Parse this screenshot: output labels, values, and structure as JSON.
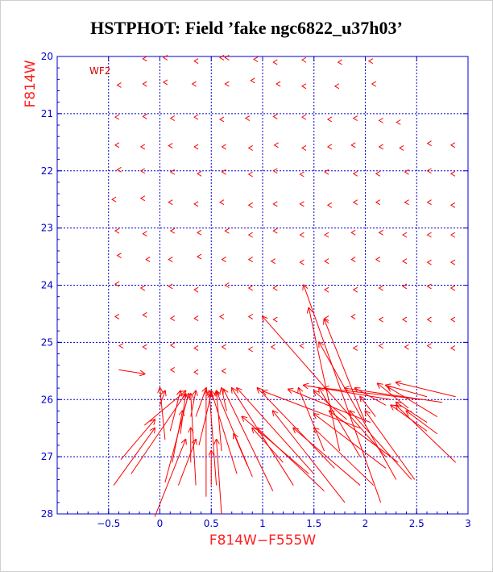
{
  "chart_data": {
    "type": "vector-field",
    "title": "HSTPHOT: Field ’fake ngc6822_u37h03’",
    "xlabel": "F814W−F555W",
    "ylabel": "F814W",
    "annotation": "WF2",
    "xlim": [
      -1.0,
      3.0
    ],
    "ylim": [
      28,
      20
    ],
    "y_inverted": true,
    "grid": true,
    "x_ticks": [
      -0.5,
      0,
      0.5,
      1,
      1.5,
      2,
      2.5,
      3
    ],
    "x_tick_labels": [
      "−0.5",
      "0",
      "0.5",
      "1",
      "1.5",
      "2",
      "2.5",
      "3"
    ],
    "y_ticks": [
      20,
      21,
      22,
      23,
      24,
      25,
      26,
      27,
      28
    ],
    "y_tick_labels": [
      "20",
      "21",
      "22",
      "23",
      "24",
      "25",
      "26",
      "27",
      "28"
    ],
    "grid_x": [
      -0.5,
      0,
      0.5,
      1,
      1.5,
      2,
      2.5
    ],
    "grid_y": [
      21,
      22,
      23,
      24,
      25,
      26,
      27
    ],
    "colors": {
      "axes": "#0000cc",
      "grid": "#0000cc",
      "vectors": "#ff0000",
      "title": "#000000",
      "axis_title": "#ff2020"
    },
    "arrows_note": "each arrow: [x_tail, y_tail, x_head, y_head] in data units (color, magnitude)",
    "arrows": [
      [
        -0.15,
        20.04,
        -0.15,
        20.04
      ],
      [
        0.05,
        20.02,
        0.05,
        20.02
      ],
      [
        0.35,
        20.08,
        0.35,
        20.08
      ],
      [
        0.6,
        20.02,
        0.6,
        20.02
      ],
      [
        0.65,
        20.02,
        0.65,
        20.02
      ],
      [
        0.93,
        20.05,
        0.93,
        20.05
      ],
      [
        1.12,
        20.1,
        1.12,
        20.1
      ],
      [
        1.4,
        20.06,
        1.4,
        20.06
      ],
      [
        1.75,
        20.1,
        1.75,
        20.1
      ],
      [
        2.05,
        20.08,
        2.05,
        20.08
      ],
      [
        -0.4,
        20.5,
        -0.4,
        20.5
      ],
      [
        -0.15,
        20.48,
        -0.15,
        20.48
      ],
      [
        0.05,
        20.45,
        0.05,
        20.45
      ],
      [
        0.33,
        20.48,
        0.33,
        20.48
      ],
      [
        0.65,
        20.48,
        0.65,
        20.48
      ],
      [
        0.9,
        20.42,
        0.9,
        20.42
      ],
      [
        1.15,
        20.48,
        1.15,
        20.48
      ],
      [
        1.4,
        20.52,
        1.4,
        20.52
      ],
      [
        1.72,
        20.52,
        1.72,
        20.52
      ],
      [
        2.08,
        20.48,
        2.08,
        20.48
      ],
      [
        -0.42,
        21.06,
        -0.42,
        21.06
      ],
      [
        -0.15,
        21.05,
        -0.15,
        21.05
      ],
      [
        0.12,
        21.08,
        0.12,
        21.08
      ],
      [
        0.35,
        21.06,
        0.35,
        21.06
      ],
      [
        0.6,
        21.1,
        0.6,
        21.1
      ],
      [
        0.85,
        21.08,
        0.85,
        21.08
      ],
      [
        1.12,
        21.05,
        1.12,
        21.05
      ],
      [
        1.4,
        21.06,
        1.4,
        21.06
      ],
      [
        1.65,
        21.1,
        1.65,
        21.1
      ],
      [
        1.9,
        21.08,
        1.9,
        21.08
      ],
      [
        2.15,
        21.12,
        2.15,
        21.12
      ],
      [
        2.32,
        21.15,
        2.32,
        21.15
      ],
      [
        -0.42,
        21.55,
        -0.42,
        21.55
      ],
      [
        -0.17,
        21.58,
        -0.17,
        21.58
      ],
      [
        0.1,
        21.56,
        0.1,
        21.56
      ],
      [
        0.35,
        21.58,
        0.35,
        21.58
      ],
      [
        0.62,
        21.58,
        0.62,
        21.58
      ],
      [
        0.88,
        21.6,
        0.88,
        21.6
      ],
      [
        1.13,
        21.55,
        1.13,
        21.55
      ],
      [
        1.4,
        21.6,
        1.4,
        21.6
      ],
      [
        1.65,
        21.58,
        1.65,
        21.58
      ],
      [
        1.88,
        21.55,
        1.88,
        21.55
      ],
      [
        2.15,
        21.58,
        2.15,
        21.58
      ],
      [
        2.35,
        21.6,
        2.35,
        21.6
      ],
      [
        2.62,
        21.52,
        2.62,
        21.52
      ],
      [
        2.85,
        21.55,
        2.85,
        21.55
      ],
      [
        -0.4,
        21.98,
        -0.4,
        21.98
      ],
      [
        -0.17,
        22.0,
        -0.17,
        22.0
      ],
      [
        0.12,
        22.02,
        0.12,
        22.02
      ],
      [
        0.38,
        22.05,
        0.38,
        22.05
      ],
      [
        0.62,
        22.02,
        0.62,
        22.02
      ],
      [
        0.88,
        22.06,
        0.88,
        22.06
      ],
      [
        1.12,
        22.0,
        1.12,
        22.0
      ],
      [
        1.38,
        22.06,
        1.38,
        22.06
      ],
      [
        1.62,
        22.02,
        1.62,
        22.02
      ],
      [
        1.9,
        22.05,
        1.9,
        22.05
      ],
      [
        2.12,
        22.05,
        2.12,
        22.05
      ],
      [
        2.4,
        22.02,
        2.4,
        22.02
      ],
      [
        2.62,
        22.0,
        2.62,
        22.0
      ],
      [
        2.85,
        22.05,
        2.85,
        22.05
      ],
      [
        -0.45,
        22.5,
        -0.45,
        22.5
      ],
      [
        -0.17,
        22.48,
        -0.17,
        22.48
      ],
      [
        0.1,
        22.55,
        0.1,
        22.55
      ],
      [
        0.35,
        22.58,
        0.35,
        22.58
      ],
      [
        0.6,
        22.55,
        0.6,
        22.55
      ],
      [
        0.88,
        22.6,
        0.88,
        22.6
      ],
      [
        1.12,
        22.58,
        1.12,
        22.58
      ],
      [
        1.38,
        22.58,
        1.38,
        22.58
      ],
      [
        1.65,
        22.6,
        1.65,
        22.6
      ],
      [
        1.9,
        22.55,
        1.9,
        22.55
      ],
      [
        2.12,
        22.55,
        2.12,
        22.55
      ],
      [
        2.4,
        22.55,
        2.4,
        22.55
      ],
      [
        2.62,
        22.55,
        2.62,
        22.55
      ],
      [
        2.85,
        22.6,
        2.85,
        22.6
      ],
      [
        -0.42,
        23.05,
        -0.42,
        23.05
      ],
      [
        -0.15,
        23.1,
        -0.15,
        23.1
      ],
      [
        0.12,
        23.05,
        0.12,
        23.05
      ],
      [
        0.38,
        23.08,
        0.38,
        23.08
      ],
      [
        0.65,
        23.05,
        0.65,
        23.05
      ],
      [
        0.88,
        23.12,
        0.88,
        23.12
      ],
      [
        1.12,
        23.05,
        1.12,
        23.05
      ],
      [
        1.38,
        23.12,
        1.38,
        23.12
      ],
      [
        1.62,
        23.12,
        1.62,
        23.12
      ],
      [
        1.88,
        23.08,
        1.88,
        23.08
      ],
      [
        2.15,
        23.08,
        2.15,
        23.08
      ],
      [
        2.38,
        23.12,
        2.38,
        23.12
      ],
      [
        2.62,
        23.12,
        2.62,
        23.12
      ],
      [
        2.85,
        23.12,
        2.85,
        23.12
      ],
      [
        -0.4,
        23.48,
        -0.4,
        23.48
      ],
      [
        -0.12,
        23.55,
        -0.12,
        23.55
      ],
      [
        0.1,
        23.55,
        0.1,
        23.55
      ],
      [
        0.38,
        23.5,
        0.38,
        23.5
      ],
      [
        0.62,
        23.55,
        0.62,
        23.55
      ],
      [
        0.88,
        23.55,
        0.88,
        23.55
      ],
      [
        1.1,
        23.58,
        1.1,
        23.58
      ],
      [
        1.38,
        23.6,
        1.38,
        23.6
      ],
      [
        1.62,
        23.58,
        1.62,
        23.58
      ],
      [
        1.88,
        23.55,
        1.88,
        23.55
      ],
      [
        2.12,
        23.55,
        2.12,
        23.55
      ],
      [
        2.38,
        23.58,
        2.38,
        23.58
      ],
      [
        2.62,
        23.6,
        2.62,
        23.6
      ],
      [
        2.85,
        23.6,
        2.85,
        23.6
      ],
      [
        -0.42,
        23.98,
        -0.42,
        23.98
      ],
      [
        -0.17,
        24.05,
        -0.17,
        24.05
      ],
      [
        0.1,
        24.02,
        0.1,
        24.02
      ],
      [
        0.35,
        24.08,
        0.35,
        24.08
      ],
      [
        0.65,
        24.0,
        0.65,
        24.0
      ],
      [
        0.88,
        24.05,
        0.88,
        24.05
      ],
      [
        1.12,
        24.05,
        1.12,
        24.05
      ],
      [
        1.62,
        24.08,
        1.62,
        24.08
      ],
      [
        1.9,
        24.08,
        1.9,
        24.08
      ],
      [
        2.15,
        24.05,
        2.15,
        24.05
      ],
      [
        2.38,
        24.02,
        2.38,
        24.02
      ],
      [
        2.62,
        24.02,
        2.62,
        24.02
      ],
      [
        2.85,
        24.05,
        2.85,
        24.05
      ],
      [
        -0.42,
        24.55,
        -0.42,
        24.55
      ],
      [
        -0.15,
        24.52,
        -0.15,
        24.52
      ],
      [
        0.12,
        24.58,
        0.12,
        24.58
      ],
      [
        0.35,
        24.58,
        0.35,
        24.58
      ],
      [
        0.6,
        24.55,
        0.6,
        24.55
      ],
      [
        0.88,
        24.55,
        0.88,
        24.55
      ],
      [
        1.12,
        24.6,
        1.12,
        24.6
      ],
      [
        1.62,
        24.58,
        1.62,
        24.58
      ],
      [
        1.88,
        24.55,
        1.88,
        24.55
      ],
      [
        2.15,
        24.6,
        2.15,
        24.6
      ],
      [
        2.38,
        24.6,
        2.38,
        24.6
      ],
      [
        2.62,
        24.6,
        2.62,
        24.6
      ],
      [
        2.85,
        24.6,
        2.85,
        24.6
      ],
      [
        -0.38,
        25.06,
        -0.38,
        25.06
      ],
      [
        -0.15,
        25.08,
        -0.15,
        25.08
      ],
      [
        0.12,
        25.05,
        0.12,
        25.05
      ],
      [
        0.35,
        25.1,
        0.35,
        25.1
      ],
      [
        0.62,
        25.08,
        0.62,
        25.08
      ],
      [
        0.88,
        25.12,
        0.88,
        25.12
      ],
      [
        1.1,
        25.08,
        1.1,
        25.08
      ],
      [
        1.38,
        25.06,
        1.38,
        25.06
      ],
      [
        1.9,
        25.1,
        1.9,
        25.1
      ],
      [
        2.15,
        25.06,
        2.15,
        25.06
      ],
      [
        2.4,
        25.08,
        2.4,
        25.08
      ],
      [
        2.62,
        25.06,
        2.62,
        25.06
      ],
      [
        2.85,
        25.1,
        2.85,
        25.1
      ],
      [
        -0.4,
        25.48,
        -0.15,
        25.55
      ],
      [
        0.12,
        25.48,
        0.12,
        25.48
      ],
      [
        0.35,
        25.52,
        0.35,
        25.52
      ],
      [
        0.62,
        25.5,
        0.62,
        25.5
      ],
      [
        -0.38,
        27.05,
        -0.05,
        26.35
      ],
      [
        -0.45,
        27.5,
        -0.05,
        26.5
      ],
      [
        -0.05,
        28.05,
        0.25,
        26.7
      ],
      [
        0.18,
        27.5,
        0.35,
        26.7
      ],
      [
        0.12,
        27.1,
        0.22,
        26.2
      ],
      [
        0.3,
        27.1,
        0.3,
        26.5
      ],
      [
        0.6,
        28.0,
        0.55,
        26.7
      ],
      [
        0.5,
        27.5,
        0.5,
        26.9
      ],
      [
        0.85,
        27.15,
        0.72,
        26.6
      ],
      [
        1.2,
        27.1,
        0.9,
        26.5
      ],
      [
        1.45,
        27.3,
        0.8,
        26.3
      ],
      [
        1.6,
        27.6,
        0.95,
        26.5
      ],
      [
        1.8,
        27.8,
        1.1,
        26.2
      ],
      [
        1.95,
        27.5,
        1.3,
        26.5
      ],
      [
        2.08,
        27.5,
        1.5,
        26.5
      ],
      [
        2.2,
        27.2,
        1.5,
        26.25
      ],
      [
        2.32,
        27.1,
        1.65,
        26.2
      ],
      [
        2.45,
        27.4,
        1.85,
        26.2
      ],
      [
        2.48,
        27.4,
        2.0,
        26.2
      ],
      [
        2.6,
        26.55,
        2.25,
        26.1
      ],
      [
        2.7,
        26.6,
        2.4,
        26.2
      ],
      [
        2.88,
        27.1,
        2.3,
        26.1
      ],
      [
        2.6,
        26.4,
        2.3,
        26.05
      ]
    ],
    "long_arrows": [
      [
        -0.28,
        27.3,
        0.25,
        25.9
      ],
      [
        -0.15,
        26.45,
        0.25,
        25.85
      ],
      [
        0.05,
        27.45,
        0.28,
        25.9
      ],
      [
        0.35,
        27.5,
        0.3,
        25.9
      ],
      [
        0.45,
        27.7,
        0.45,
        25.85
      ],
      [
        0.55,
        27.5,
        0.48,
        25.85
      ],
      [
        0.75,
        27.3,
        0.5,
        25.85
      ],
      [
        0.9,
        27.35,
        0.55,
        25.85
      ],
      [
        1.1,
        27.6,
        0.62,
        25.82
      ],
      [
        1.3,
        27.5,
        0.7,
        25.8
      ],
      [
        1.5,
        27.3,
        0.75,
        25.8
      ],
      [
        1.7,
        27.2,
        0.95,
        25.8
      ],
      [
        1.95,
        26.5,
        1.0,
        25.85
      ],
      [
        2.05,
        26.4,
        1.25,
        25.82
      ],
      [
        2.25,
        26.0,
        1.4,
        25.75
      ],
      [
        2.55,
        26.0,
        1.6,
        25.8
      ],
      [
        2.75,
        26.05,
        1.8,
        25.8
      ],
      [
        2.88,
        25.95,
        2.3,
        25.7
      ],
      [
        2.6,
        25.95,
        2.2,
        25.75
      ],
      [
        2.2,
        26.1,
        1.9,
        25.8
      ],
      [
        1.82,
        26.35,
        1.5,
        25.85
      ],
      [
        1.95,
        27.0,
        1.55,
        25.8
      ],
      [
        1.6,
        26.9,
        1.35,
        25.8
      ],
      [
        2.2,
        27.0,
        1.0,
        24.55
      ],
      [
        2.0,
        26.4,
        1.6,
        24.6
      ],
      [
        2.15,
        27.8,
        1.4,
        24.0
      ],
      [
        1.75,
        26.9,
        1.45,
        24.4
      ],
      [
        2.3,
        27.4,
        1.55,
        25.0
      ],
      [
        0.0,
        26.1,
        0.05,
        25.85
      ],
      [
        0.2,
        26.6,
        0.25,
        25.9
      ],
      [
        0.35,
        26.3,
        0.45,
        25.8
      ],
      [
        0.38,
        26.8,
        0.5,
        25.9
      ],
      [
        0.6,
        26.9,
        0.55,
        25.85
      ],
      [
        0.65,
        26.2,
        0.6,
        25.8
      ],
      [
        0.1,
        26.55,
        0.2,
        25.85
      ],
      [
        0.3,
        26.3,
        0.35,
        25.85
      ],
      [
        0.05,
        26.7,
        0.0,
        25.8
      ],
      [
        2.1,
        26.3,
        1.95,
        25.95
      ],
      [
        2.42,
        26.15,
        2.12,
        25.72
      ],
      [
        2.7,
        26.3,
        2.22,
        25.78
      ]
    ]
  }
}
